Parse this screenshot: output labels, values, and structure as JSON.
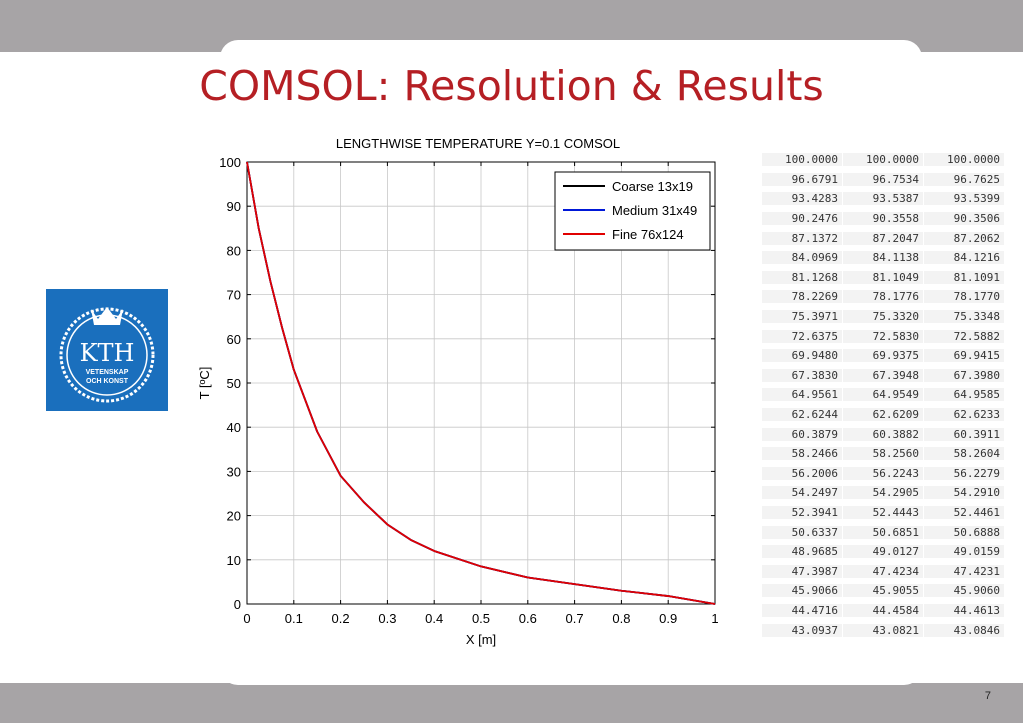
{
  "slide": {
    "title": "COMSOL: Resolution & Results",
    "page_number": "7",
    "logo": {
      "text": "KTH",
      "subtext_line1": "VETENSKAP",
      "subtext_line2": "OCH KONST"
    }
  },
  "chart_data": {
    "type": "line",
    "title": "LENGTHWISE TEMPERATURE  Y=0.1 COMSOL",
    "xlabel": "X [m]",
    "ylabel": "T [ºC]",
    "xlim": [
      0,
      1
    ],
    "ylim": [
      0,
      100
    ],
    "xticks": [
      "0",
      "0.1",
      "0.2",
      "0.3",
      "0.4",
      "0.5",
      "0.6",
      "0.7",
      "0.8",
      "0.9",
      "1"
    ],
    "yticks": [
      "0",
      "10",
      "20",
      "30",
      "40",
      "50",
      "60",
      "70",
      "80",
      "90",
      "100"
    ],
    "grid": true,
    "legend_position": "top-right",
    "x": [
      0,
      0.025,
      0.05,
      0.075,
      0.1,
      0.15,
      0.2,
      0.25,
      0.3,
      0.35,
      0.4,
      0.5,
      0.6,
      0.7,
      0.8,
      0.9,
      1.0
    ],
    "series": [
      {
        "name": "Coarse 13x19",
        "color": "#000000",
        "values": [
          100,
          85,
          73,
          62.5,
          53,
          39,
          29,
          23,
          18,
          14.5,
          12,
          8.5,
          6,
          4.5,
          3,
          1.8,
          0
        ]
      },
      {
        "name": "Medium 31x49",
        "color": "#0018d8",
        "values": [
          100,
          85,
          73,
          62.5,
          53,
          39,
          29,
          23,
          18,
          14.5,
          12,
          8.5,
          6,
          4.5,
          3,
          1.8,
          0
        ]
      },
      {
        "name": "Fine 76x124",
        "color": "#e00000",
        "values": [
          100,
          85,
          73,
          62.5,
          53,
          39,
          29,
          23,
          18,
          14.5,
          12,
          8.5,
          6,
          4.5,
          3,
          1.8,
          0
        ]
      }
    ]
  },
  "table": {
    "rows": [
      [
        "100.0000",
        "100.0000",
        "100.0000"
      ],
      [
        "96.6791",
        "96.7534",
        "96.7625"
      ],
      [
        "93.4283",
        "93.5387",
        "93.5399"
      ],
      [
        "90.2476",
        "90.3558",
        "90.3506"
      ],
      [
        "87.1372",
        "87.2047",
        "87.2062"
      ],
      [
        "84.0969",
        "84.1138",
        "84.1216"
      ],
      [
        "81.1268",
        "81.1049",
        "81.1091"
      ],
      [
        "78.2269",
        "78.1776",
        "78.1770"
      ],
      [
        "75.3971",
        "75.3320",
        "75.3348"
      ],
      [
        "72.6375",
        "72.5830",
        "72.5882"
      ],
      [
        "69.9480",
        "69.9375",
        "69.9415"
      ],
      [
        "67.3830",
        "67.3948",
        "67.3980"
      ],
      [
        "64.9561",
        "64.9549",
        "64.9585"
      ],
      [
        "62.6244",
        "62.6209",
        "62.6233"
      ],
      [
        "60.3879",
        "60.3882",
        "60.3911"
      ],
      [
        "58.2466",
        "58.2560",
        "58.2604"
      ],
      [
        "56.2006",
        "56.2243",
        "56.2279"
      ],
      [
        "54.2497",
        "54.2905",
        "54.2910"
      ],
      [
        "52.3941",
        "52.4443",
        "52.4461"
      ],
      [
        "50.6337",
        "50.6851",
        "50.6888"
      ],
      [
        "48.9685",
        "49.0127",
        "49.0159"
      ],
      [
        "47.3987",
        "47.4234",
        "47.4231"
      ],
      [
        "45.9066",
        "45.9055",
        "45.9060"
      ],
      [
        "44.4716",
        "44.4584",
        "44.4613"
      ],
      [
        "43.0937",
        "43.0821",
        "43.0846"
      ]
    ]
  }
}
